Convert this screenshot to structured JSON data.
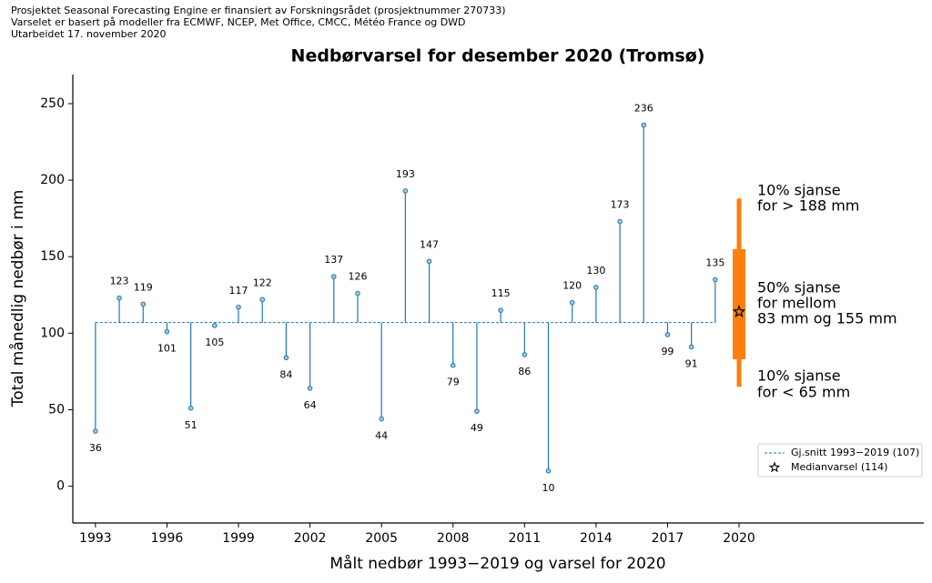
{
  "chart_data": {
    "type": "stem",
    "header": [
      "Prosjektet Seasonal Forecasting Engine er finansiert av Forskningsrådet (prosjektnummer 270733)",
      "Varselet er basert på modeller fra ECMWF, NCEP, Met Office, CMCC, Météo France og DWD",
      "Utarbeidet 17. november 2020"
    ],
    "title": "Nedbørvarsel for desember 2020 (Tromsø)",
    "xlabel": "Målt nedbør 1993−2019 og varsel for 2020",
    "ylabel": "Total månedlig nedbør i mm",
    "x": [
      1993,
      1994,
      1995,
      1996,
      1997,
      1998,
      1999,
      2000,
      2001,
      2002,
      2003,
      2004,
      2005,
      2006,
      2007,
      2008,
      2009,
      2010,
      2011,
      2012,
      2013,
      2014,
      2015,
      2016,
      2017,
      2018,
      2019
    ],
    "values": [
      36,
      123,
      119,
      101,
      51,
      105,
      117,
      122,
      84,
      64,
      137,
      126,
      44,
      193,
      147,
      79,
      49,
      115,
      86,
      10,
      120,
      130,
      173,
      236,
      99,
      91,
      135
    ],
    "color": "#1f77b4",
    "mean": 107,
    "forecast": {
      "x": 2020,
      "median": 114,
      "p10": 65,
      "p90": 188,
      "p25": 83,
      "p75": 155,
      "color": "#ff7f0e"
    },
    "annotations": [
      [
        "10% sjanse",
        "for > 188 mm"
      ],
      [
        "50% sjanse",
        "for mellom",
        "83 mm og 155 mm"
      ],
      [
        "10% sjanse",
        "for < 65 mm"
      ]
    ],
    "legend": [
      "Gj.snitt 1993−2019 (107)",
      "Medianvarsel (114)"
    ],
    "legend_position": "lower right",
    "xlim": [
      1992.05,
      2027.75
    ],
    "ylim": [
      -24,
      269
    ],
    "xticks": [
      1993,
      1996,
      1999,
      2002,
      2005,
      2008,
      2011,
      2014,
      2017,
      2020
    ],
    "yticks": [
      0,
      50,
      100,
      150,
      200,
      250
    ]
  }
}
